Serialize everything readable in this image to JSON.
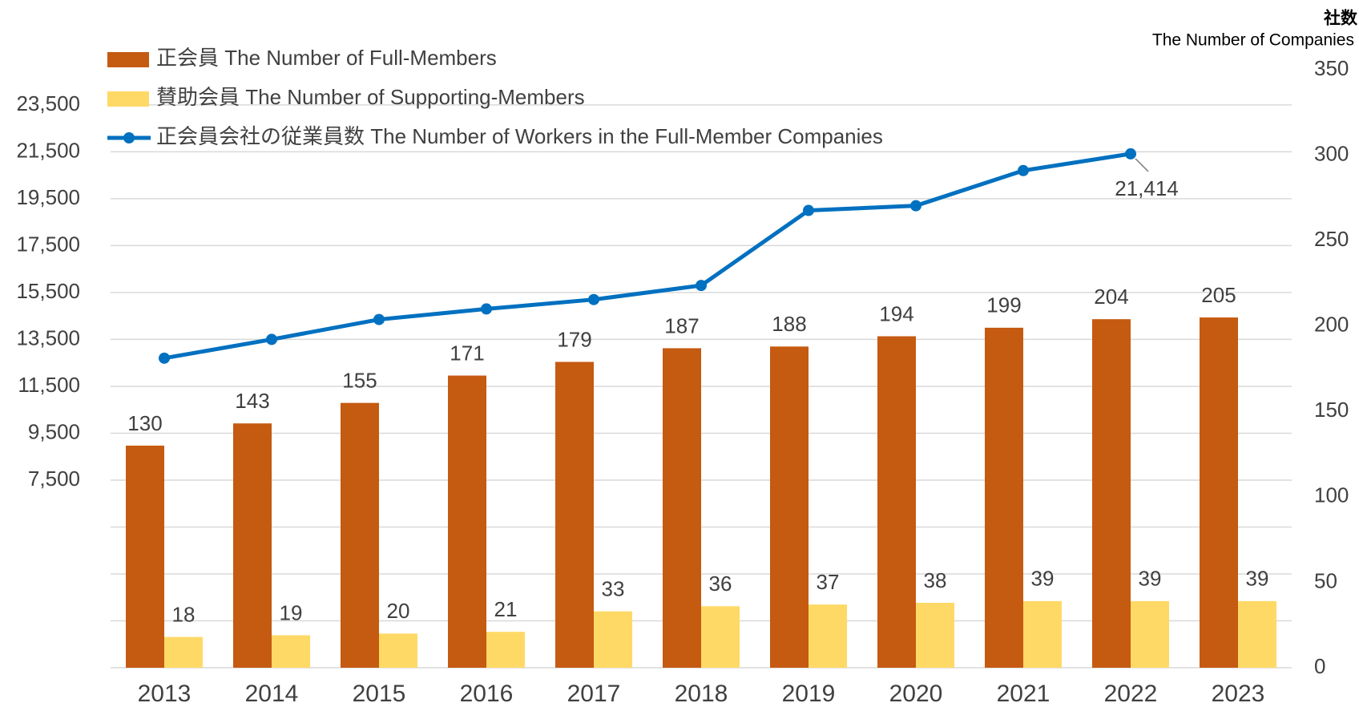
{
  "chart_data": {
    "type": "bar-line",
    "y2_title": "社数",
    "y2_subtitle": "The Number of Companies",
    "categories": [
      "2013",
      "2014",
      "2015",
      "2016",
      "2017",
      "2018",
      "2019",
      "2020",
      "2021",
      "2022",
      "2023"
    ],
    "series": [
      {
        "name": "正会員 The Number of Full-Members",
        "type": "bar",
        "axis": "y2",
        "color": "#C55A11",
        "values": [
          130,
          143,
          155,
          171,
          179,
          187,
          188,
          194,
          199,
          204,
          205
        ]
      },
      {
        "name": "賛助会員 The Number of Supporting-Members",
        "type": "bar",
        "axis": "y2",
        "color": "#FFD966",
        "values": [
          18,
          19,
          20,
          21,
          33,
          36,
          37,
          38,
          39,
          39,
          39
        ]
      },
      {
        "name": "正会員会社の従業員数 The Number of Workers in the Full-Member Companies",
        "type": "line",
        "axis": "y",
        "color": "#0070C0",
        "values": [
          12700,
          13500,
          14350,
          14800,
          15200,
          15800,
          19000,
          19200,
          20700,
          21414,
          null
        ],
        "value_labels": [
          null,
          null,
          null,
          null,
          null,
          null,
          null,
          null,
          null,
          "21,414",
          null
        ]
      }
    ],
    "ylim": [
      -500,
      25000
    ],
    "yticks": [
      {
        "value": -500,
        "label": null
      },
      {
        "value": 1500,
        "label": null
      },
      {
        "value": 3500,
        "label": null
      },
      {
        "value": 5500,
        "label": null
      },
      {
        "value": 7500,
        "label": "7,500"
      },
      {
        "value": 9500,
        "label": "9,500"
      },
      {
        "value": 11500,
        "label": "11,500"
      },
      {
        "value": 13500,
        "label": "13,500"
      },
      {
        "value": 15500,
        "label": "15,500"
      },
      {
        "value": 17500,
        "label": "17,500"
      },
      {
        "value": 19500,
        "label": "19,500"
      },
      {
        "value": 21500,
        "label": "21,500"
      },
      {
        "value": 23500,
        "label": "23,500"
      }
    ],
    "y2lim": [
      0,
      350
    ],
    "y2ticks": [
      0,
      50,
      100,
      150,
      200,
      250,
      300,
      350
    ],
    "grid": true,
    "legend": "top-left"
  }
}
